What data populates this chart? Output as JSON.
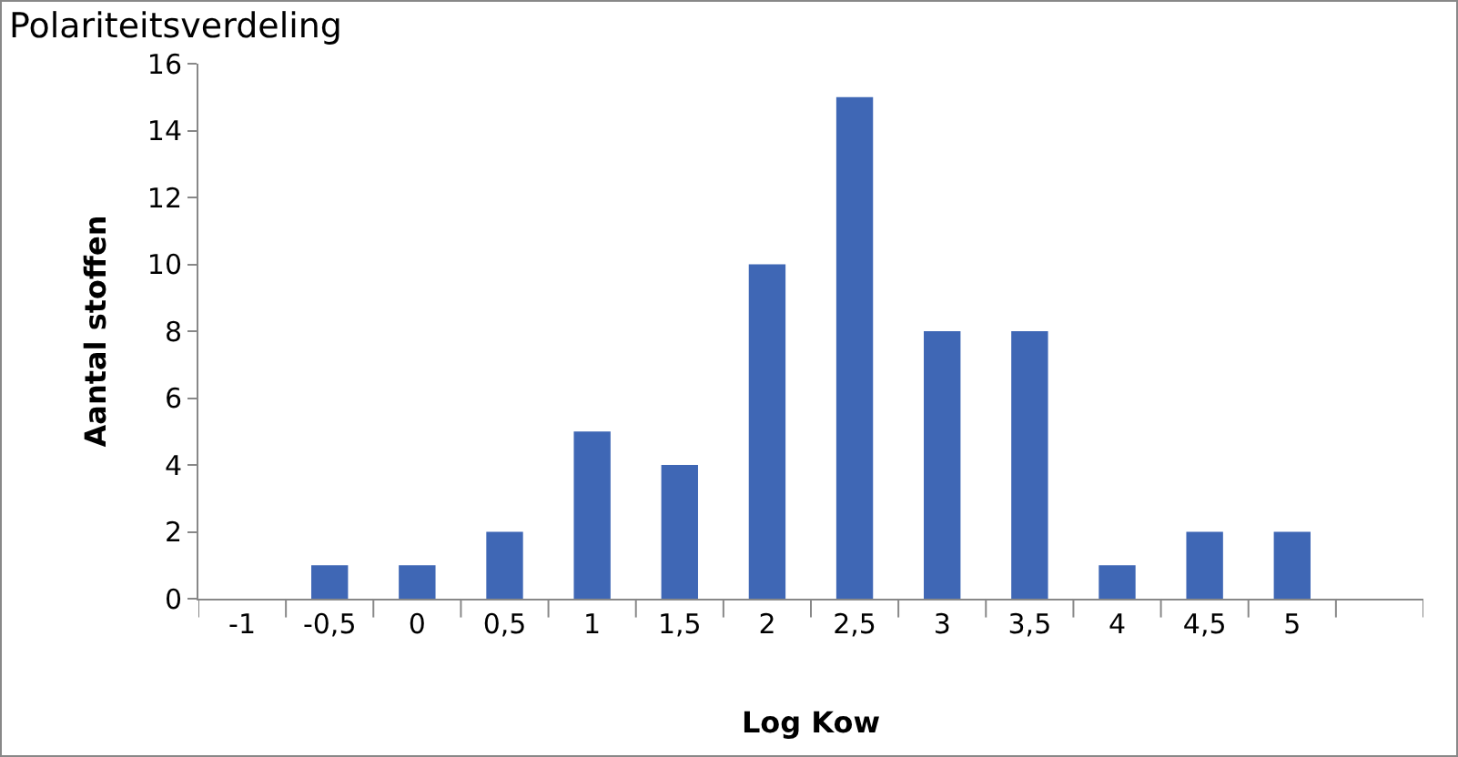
{
  "chart_data": {
    "type": "bar",
    "title": "Polariteitsverdeling",
    "xlabel": "Log Kow",
    "ylabel": "Aantal stoffen",
    "categories": [
      "-1",
      "-0,5",
      "0",
      "0,5",
      "1",
      "1,5",
      "2",
      "2,5",
      "3",
      "3,5",
      "4",
      "4,5",
      "5",
      null
    ],
    "values": [
      0,
      1,
      1,
      2,
      5,
      4,
      10,
      15,
      8,
      8,
      1,
      2,
      2,
      0
    ],
    "color": "#3f67b5",
    "ylim": [
      0,
      16
    ],
    "yticks": [
      0,
      2,
      4,
      6,
      8,
      10,
      12,
      14,
      16
    ],
    "grid": false
  }
}
